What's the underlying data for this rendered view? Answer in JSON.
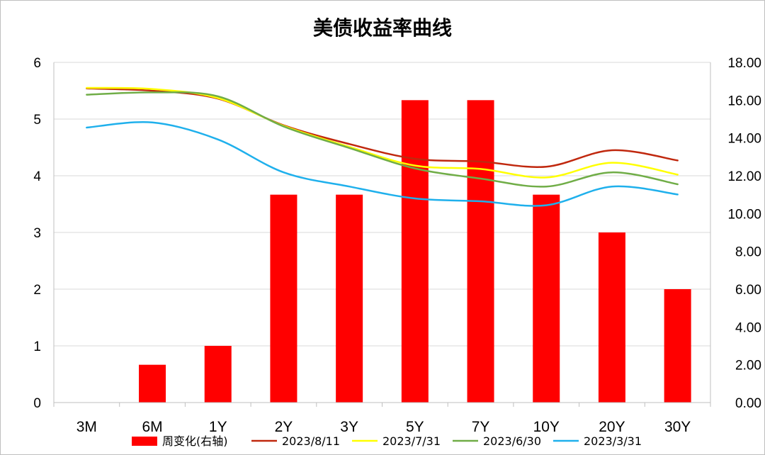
{
  "chart_data": {
    "type": "bar+line",
    "title": "美债收益率曲线",
    "categories": [
      "3M",
      "6M",
      "1Y",
      "2Y",
      "3Y",
      "5Y",
      "7Y",
      "10Y",
      "20Y",
      "30Y"
    ],
    "y_left": {
      "ylim": [
        0,
        6
      ],
      "ticks": [
        "0",
        "1",
        "2",
        "3",
        "4",
        "5",
        "6"
      ]
    },
    "y_right": {
      "ylim": [
        0,
        18
      ],
      "ticks": [
        "0.00",
        "2.00",
        "4.00",
        "6.00",
        "8.00",
        "10.00",
        "12.00",
        "14.00",
        "16.00",
        "18.00"
      ]
    },
    "bars": {
      "name": "周变化(右轴)",
      "axis": "right",
      "color": "#ff0000",
      "values": [
        0,
        2,
        3,
        11,
        11,
        16,
        16,
        11,
        9,
        6
      ]
    },
    "series": [
      {
        "name": "2023/8/11",
        "axis": "left",
        "color": "#c0280e",
        "values": [
          5.54,
          5.5,
          5.36,
          4.89,
          4.56,
          4.3,
          4.25,
          4.16,
          4.45,
          4.27
        ]
      },
      {
        "name": "2023/7/31",
        "axis": "left",
        "color": "#ffff00",
        "values": [
          5.55,
          5.53,
          5.37,
          4.88,
          4.51,
          4.18,
          4.12,
          3.97,
          4.23,
          4.02
        ]
      },
      {
        "name": "2023/6/30",
        "axis": "left",
        "color": "#70ad47",
        "values": [
          5.43,
          5.47,
          5.4,
          4.87,
          4.49,
          4.13,
          3.95,
          3.81,
          4.06,
          3.85
        ]
      },
      {
        "name": "2023/3/31",
        "axis": "left",
        "color": "#1fb0ec",
        "values": [
          4.85,
          4.94,
          4.64,
          4.06,
          3.81,
          3.6,
          3.55,
          3.48,
          3.81,
          3.67
        ]
      }
    ],
    "grid": true,
    "legend": "bottom"
  }
}
